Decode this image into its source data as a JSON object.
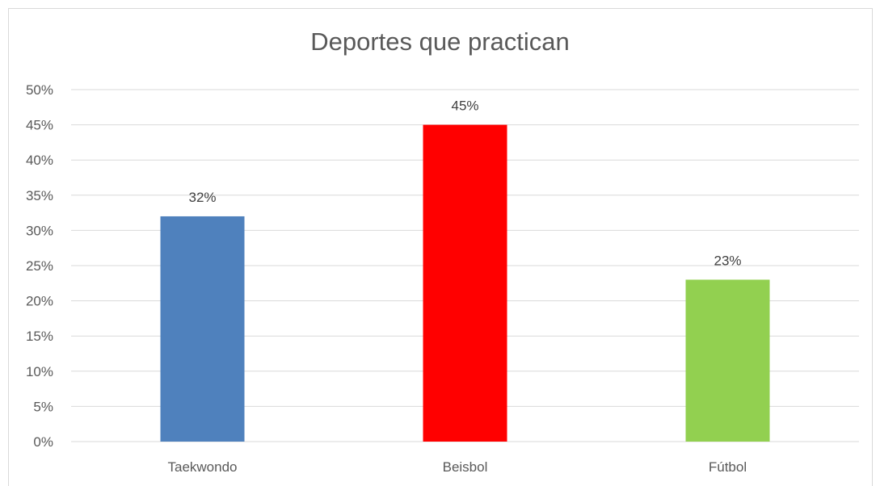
{
  "chart_data": {
    "type": "bar",
    "title": "Deportes que practican",
    "categories": [
      "Taekwondo",
      "Beisbol",
      "Fútbol"
    ],
    "values": [
      32,
      45,
      23
    ],
    "data_labels": [
      "32%",
      "45%",
      "23%"
    ],
    "colors": [
      "#4f81bd",
      "#ff0000",
      "#92d050"
    ],
    "ylim": [
      0,
      50
    ],
    "yticks": [
      "0%",
      "5%",
      "10%",
      "15%",
      "20%",
      "25%",
      "30%",
      "35%",
      "40%",
      "45%",
      "50%"
    ],
    "grid": true,
    "xlabel": "",
    "ylabel": ""
  }
}
